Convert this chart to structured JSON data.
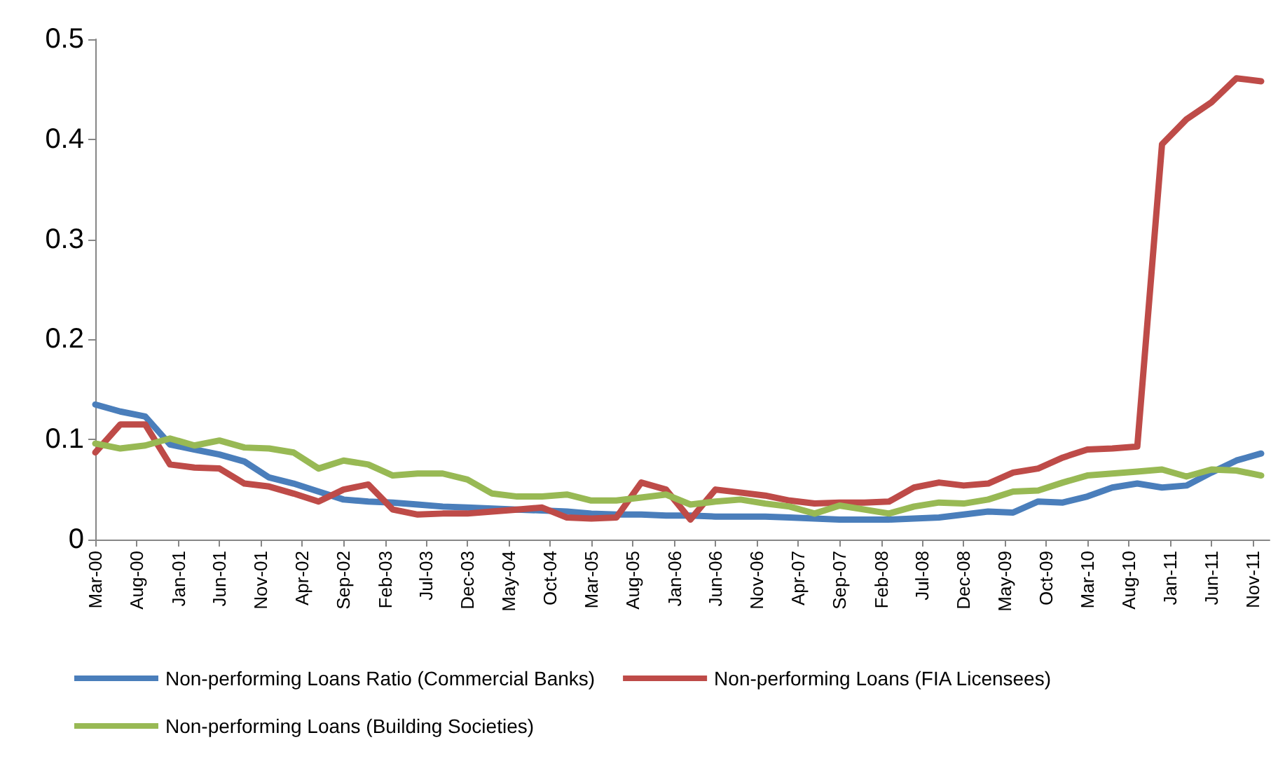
{
  "chart_data": {
    "type": "line",
    "x": [
      "2000-03",
      "2000-06",
      "2000-09",
      "2000-12",
      "2001-03",
      "2001-06",
      "2001-09",
      "2001-12",
      "2002-03",
      "2002-06",
      "2002-09",
      "2002-12",
      "2003-03",
      "2003-06",
      "2003-09",
      "2003-12",
      "2004-03",
      "2004-06",
      "2004-09",
      "2004-12",
      "2005-03",
      "2005-06",
      "2005-09",
      "2005-12",
      "2006-03",
      "2006-06",
      "2006-09",
      "2006-12",
      "2007-03",
      "2007-06",
      "2007-09",
      "2007-12",
      "2008-03",
      "2008-06",
      "2008-09",
      "2008-12",
      "2009-03",
      "2009-06",
      "2009-09",
      "2009-12",
      "2010-03",
      "2010-06",
      "2010-09",
      "2010-12",
      "2011-03",
      "2011-06",
      "2011-09",
      "2011-12"
    ],
    "series": [
      {
        "name": "Non-performing Loans Ratio (Commercial Banks)",
        "color": "#4a7ebb",
        "values": [
          0.135,
          0.128,
          0.123,
          0.095,
          0.09,
          0.085,
          0.078,
          0.062,
          0.056,
          0.048,
          0.04,
          0.038,
          0.037,
          0.035,
          0.033,
          0.032,
          0.031,
          0.03,
          0.029,
          0.028,
          0.026,
          0.025,
          0.025,
          0.024,
          0.024,
          0.023,
          0.023,
          0.023,
          0.022,
          0.021,
          0.02,
          0.02,
          0.02,
          0.021,
          0.022,
          0.025,
          0.028,
          0.027,
          0.038,
          0.037,
          0.043,
          0.052,
          0.056,
          0.052,
          0.054,
          0.067,
          0.079,
          0.086
        ]
      },
      {
        "name": "Non-performing Loans (FIA Licensees)",
        "color": "#be4b48",
        "values": [
          0.087,
          0.115,
          0.115,
          0.075,
          0.072,
          0.071,
          0.056,
          0.053,
          0.046,
          0.038,
          0.05,
          0.055,
          0.03,
          0.025,
          0.026,
          0.026,
          0.028,
          0.03,
          0.032,
          0.022,
          0.021,
          0.022,
          0.057,
          0.05,
          0.02,
          0.05,
          0.047,
          0.044,
          0.039,
          0.036,
          0.037,
          0.037,
          0.038,
          0.052,
          0.057,
          0.054,
          0.056,
          0.067,
          0.071,
          0.082,
          0.09,
          0.091,
          0.093,
          0.395,
          0.42,
          0.437,
          0.461,
          0.458
        ]
      },
      {
        "name": "Non-performing Loans (Building Societies)",
        "color": "#98b954",
        "values": [
          0.096,
          0.091,
          0.094,
          0.101,
          0.094,
          0.099,
          0.092,
          0.091,
          0.087,
          0.071,
          0.079,
          0.075,
          0.064,
          0.066,
          0.066,
          0.06,
          0.046,
          0.043,
          0.043,
          0.045,
          0.039,
          0.039,
          0.042,
          0.045,
          0.035,
          0.038,
          0.04,
          0.036,
          0.033,
          0.026,
          0.034,
          0.03,
          0.026,
          0.033,
          0.037,
          0.036,
          0.04,
          0.048,
          0.049,
          0.057,
          0.064,
          0.066,
          0.068,
          0.07,
          0.063,
          0.07,
          0.069,
          0.064
        ]
      }
    ],
    "xlim": [
      "2000-03",
      "2012-01"
    ],
    "xticks": [
      {
        "value": "2000-03",
        "label": "Mar-00"
      },
      {
        "value": "2000-08",
        "label": "Aug-00"
      },
      {
        "value": "2001-01",
        "label": "Jan-01"
      },
      {
        "value": "2001-06",
        "label": "Jun-01"
      },
      {
        "value": "2001-11",
        "label": "Nov-01"
      },
      {
        "value": "2002-04",
        "label": "Apr-02"
      },
      {
        "value": "2002-09",
        "label": "Sep-02"
      },
      {
        "value": "2003-02",
        "label": "Feb-03"
      },
      {
        "value": "2003-07",
        "label": "Jul-03"
      },
      {
        "value": "2003-12",
        "label": "Dec-03"
      },
      {
        "value": "2004-05",
        "label": "May-04"
      },
      {
        "value": "2004-10",
        "label": "Oct-04"
      },
      {
        "value": "2005-03",
        "label": "Mar-05"
      },
      {
        "value": "2005-08",
        "label": "Aug-05"
      },
      {
        "value": "2006-01",
        "label": "Jan-06"
      },
      {
        "value": "2006-06",
        "label": "Jun-06"
      },
      {
        "value": "2006-11",
        "label": "Nov-06"
      },
      {
        "value": "2007-04",
        "label": "Apr-07"
      },
      {
        "value": "2007-09",
        "label": "Sep-07"
      },
      {
        "value": "2008-02",
        "label": "Feb-08"
      },
      {
        "value": "2008-07",
        "label": "Jul-08"
      },
      {
        "value": "2008-12",
        "label": "Dec-08"
      },
      {
        "value": "2009-05",
        "label": "May-09"
      },
      {
        "value": "2009-10",
        "label": "Oct-09"
      },
      {
        "value": "2010-03",
        "label": "Mar-10"
      },
      {
        "value": "2010-08",
        "label": "Aug-10"
      },
      {
        "value": "2011-01",
        "label": "Jan-11"
      },
      {
        "value": "2011-06",
        "label": "Jun-11"
      },
      {
        "value": "2011-11",
        "label": "Nov-11"
      }
    ],
    "ylim": [
      0,
      0.5
    ],
    "yticks": [
      0,
      0.1,
      0.2,
      0.3,
      0.4,
      0.5
    ],
    "grid": false,
    "legend": "bottom",
    "marker": "none",
    "line_style": "solid"
  }
}
